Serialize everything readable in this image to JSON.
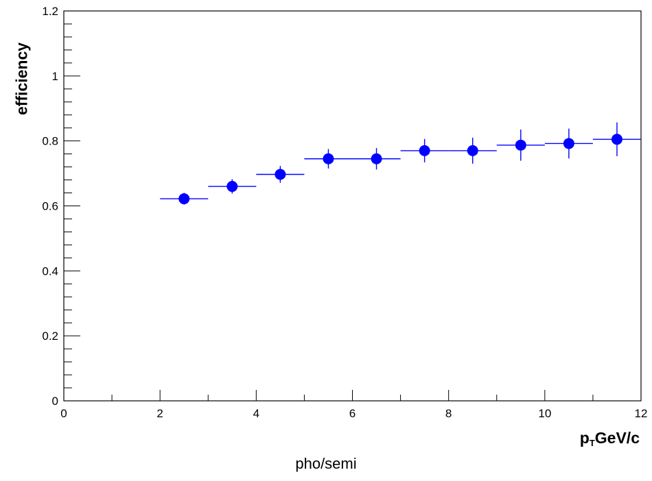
{
  "chart_data": {
    "type": "scatter",
    "caption": "pho/semi",
    "xlabel": {
      "main": "p",
      "sub": "T",
      "unit": "GeV/c"
    },
    "ylabel": "efficiency",
    "xlim": [
      0,
      12
    ],
    "ylim": [
      0,
      1.2
    ],
    "x_ticks": [
      "0",
      "2",
      "4",
      "6",
      "8",
      "10",
      "12"
    ],
    "y_ticks": [
      "0",
      "0.2",
      "0.4",
      "0.6",
      "0.8",
      "1",
      "1.2"
    ],
    "marker_color": "#0000ff",
    "points": [
      {
        "x": 2.5,
        "y": 0.622,
        "xerr": 0.5,
        "yerr": 0.018
      },
      {
        "x": 3.5,
        "y": 0.66,
        "xerr": 0.5,
        "yerr": 0.022
      },
      {
        "x": 4.5,
        "y": 0.697,
        "xerr": 0.5,
        "yerr": 0.026
      },
      {
        "x": 5.5,
        "y": 0.745,
        "xerr": 0.5,
        "yerr": 0.03
      },
      {
        "x": 6.5,
        "y": 0.745,
        "xerr": 0.5,
        "yerr": 0.033
      },
      {
        "x": 7.5,
        "y": 0.77,
        "xerr": 0.5,
        "yerr": 0.036
      },
      {
        "x": 8.5,
        "y": 0.77,
        "xerr": 0.5,
        "yerr": 0.04
      },
      {
        "x": 9.5,
        "y": 0.787,
        "xerr": 0.5,
        "yerr": 0.048
      },
      {
        "x": 10.5,
        "y": 0.792,
        "xerr": 0.5,
        "yerr": 0.046
      },
      {
        "x": 11.5,
        "y": 0.805,
        "xerr": 0.5,
        "yerr": 0.052
      }
    ]
  }
}
